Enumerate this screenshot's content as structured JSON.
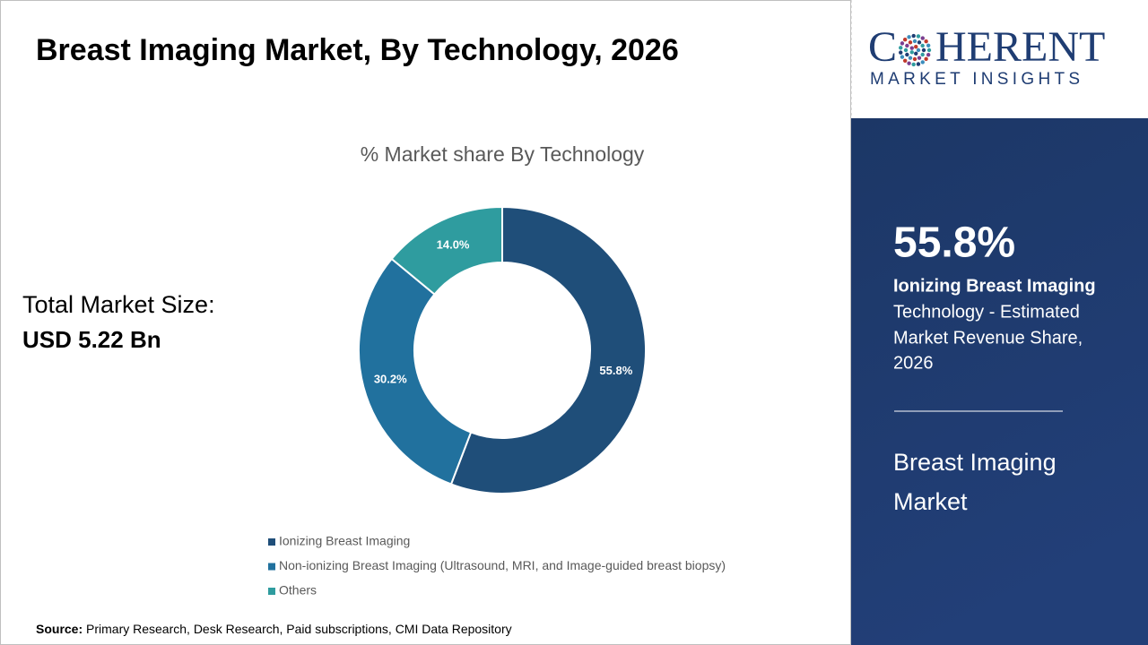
{
  "header": {
    "title": "Breast Imaging Market,  By Technology, 2026"
  },
  "total": {
    "label": "Total Market Size:",
    "value": "USD 5.22 Bn"
  },
  "logo": {
    "left": "C",
    "right": "HERENT",
    "tagline": "MARKET INSIGHTS"
  },
  "side": {
    "highlight": "55.8%",
    "segment": "Ionizing Breast Imaging",
    "description": [
      "Technology - Estimated",
      "Market Revenue Share,",
      "2026"
    ],
    "market": [
      "Breast Imaging",
      "Market"
    ]
  },
  "source": {
    "label": "Source:",
    "text": "Primary Research, Desk Research, Paid subscriptions, CMI Data Repository"
  },
  "chart_data": {
    "type": "donut",
    "title": "% Market share  By Technology",
    "categories": [
      "Ionizing Breast Imaging",
      "Non-ionizing Breast Imaging (Ultrasound, MRI, and Image-guided breast biopsy)",
      "Others"
    ],
    "values": [
      55.8,
      30.2,
      14.0
    ],
    "value_labels": [
      "55.8%",
      "30.2%",
      "14.0%"
    ],
    "colors": [
      "#1f4e79",
      "#21719e",
      "#2f9c9f"
    ]
  }
}
